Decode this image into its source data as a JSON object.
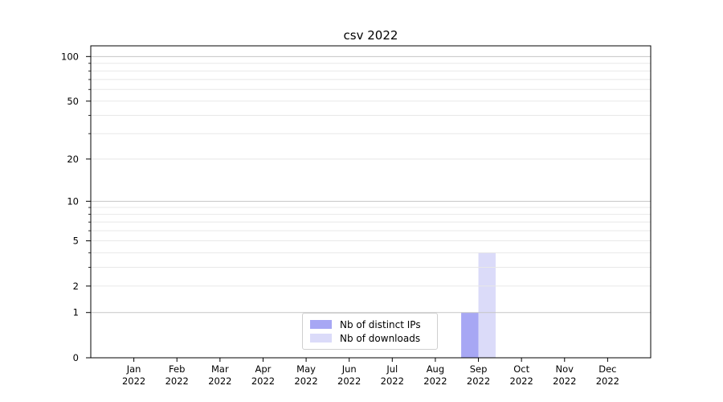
{
  "title": "csv 2022",
  "chart_data": {
    "type": "bar",
    "title": "csv 2022",
    "categories": [
      "Jan 2022",
      "Feb 2022",
      "Mar 2022",
      "Apr 2022",
      "May 2022",
      "Jun 2022",
      "Jul 2022",
      "Aug 2022",
      "Sep 2022",
      "Oct 2022",
      "Nov 2022",
      "Dec 2022"
    ],
    "series": [
      {
        "name": "Nb of distinct IPs",
        "color": "#a7a7f4",
        "values": [
          0,
          0,
          0,
          0,
          0,
          0,
          0,
          0,
          1,
          0,
          0,
          0
        ]
      },
      {
        "name": "Nb of downloads",
        "color": "#dbdbf9",
        "values": [
          0,
          0,
          0,
          0,
          0,
          0,
          0,
          0,
          4,
          0,
          0,
          0
        ]
      }
    ],
    "y_axis": {
      "scale": "log10(1+y)",
      "major_ticks": [
        0,
        1,
        2,
        5,
        10,
        20,
        50,
        100
      ],
      "minor_ticks": [
        3,
        4,
        6,
        7,
        8,
        9,
        30,
        40,
        60,
        70,
        80,
        90
      ],
      "decade_lines": [
        1,
        10,
        100
      ],
      "ylim": [
        0,
        118
      ]
    },
    "x_axis": {
      "year_line": "2022"
    },
    "legend": {
      "position": "lower center"
    },
    "grid": true,
    "colors": {
      "axis": "#000000",
      "text": "#000000",
      "grid_decade": "#c6c6c6",
      "grid_minor": "#e8e8e8",
      "background": "#ffffff"
    }
  }
}
